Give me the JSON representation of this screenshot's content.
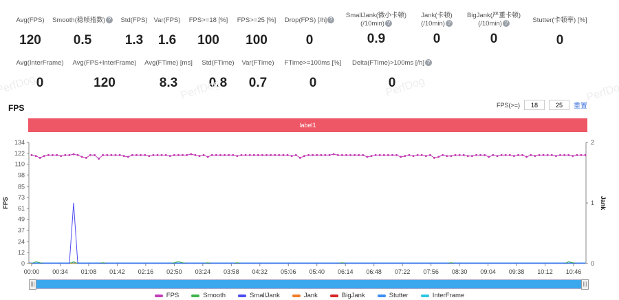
{
  "stats_row1": [
    {
      "label": "Avg(FPS)",
      "value": "120",
      "help": false
    },
    {
      "label": "Smooth(稳帧指数)",
      "value": "0.5",
      "help": true
    },
    {
      "label": "Std(FPS)",
      "value": "1.3",
      "help": false
    },
    {
      "label": "Var(FPS)",
      "value": "1.6",
      "help": false
    },
    {
      "label": "FPS>=18 [%]",
      "value": "100",
      "help": false
    },
    {
      "label": "FPS>=25 [%]",
      "value": "100",
      "help": false
    },
    {
      "label": "Drop(FPS) [/h]",
      "value": "0",
      "help": true
    },
    {
      "label": "SmallJank(微小卡顿)",
      "label2": "(/10min)",
      "value": "0.9",
      "help": true
    },
    {
      "label": "Jank(卡顿)",
      "label2": "(/10min)",
      "value": "0",
      "help": true
    },
    {
      "label": "BigJank(严重卡顿)",
      "label2": "(/10min)",
      "value": "0",
      "help": true
    },
    {
      "label": "Stutter(卡顿率) [%]",
      "value": "0",
      "help": false
    }
  ],
  "stats_row2": [
    {
      "label": "Avg(InterFrame)",
      "value": "0",
      "help": false
    },
    {
      "label": "Avg(FPS+InterFrame)",
      "value": "120",
      "help": false
    },
    {
      "label": "Avg(FTime) [ms]",
      "value": "8.3",
      "help": false
    },
    {
      "label": "Std(FTime)",
      "value": "0.8",
      "help": false
    },
    {
      "label": "Var(FTime)",
      "value": "0.7",
      "help": false
    },
    {
      "label": "FTime>=100ms [%]",
      "value": "0",
      "help": false
    },
    {
      "label": "Delta(FTime)>100ms [/h]",
      "value": "0",
      "help": true
    }
  ],
  "watermark": "PerfDog",
  "fps_section": {
    "title": "FPS",
    "threshold_label": "FPS(>=)",
    "threshold1": "18",
    "threshold2": "25",
    "reset_label": "重置",
    "label_bar": "label1"
  },
  "slider": {
    "start": 0,
    "end": 1,
    "handle_glyph": "|||"
  },
  "chart_data": {
    "type": "line",
    "ylabel": "FPS",
    "ylabel_right": "Jank",
    "ylim": [
      0,
      134
    ],
    "ylim_right": [
      0,
      2
    ],
    "yticks": [
      0,
      12,
      24,
      37,
      49,
      61,
      73,
      85,
      98,
      110,
      122,
      134
    ],
    "yticks_right": [
      0,
      1,
      2
    ],
    "xticks": [
      "00:00",
      "00:34",
      "01:08",
      "01:42",
      "02:16",
      "02:50",
      "03:24",
      "03:58",
      "04:32",
      "05:06",
      "05:40",
      "06:14",
      "06:48",
      "07:22",
      "07:56",
      "08:30",
      "09:04",
      "09:38",
      "10:12",
      "10:46"
    ],
    "x_interval_s": 5,
    "series": [
      {
        "name": "FPS",
        "color": "#c23fb5",
        "axis": "left",
        "values": [
          120,
          119,
          117,
          119,
          120,
          120,
          120,
          119,
          120,
          120,
          121,
          120,
          118,
          117,
          120,
          120,
          116,
          120,
          120,
          120,
          120,
          120,
          119,
          118,
          120,
          120,
          120,
          120,
          119,
          120,
          120,
          120,
          120,
          119,
          120,
          120,
          120,
          120,
          121,
          120,
          119,
          120,
          118,
          120,
          120,
          120,
          120,
          120,
          120,
          119,
          120,
          120,
          120,
          120,
          120,
          120,
          120,
          120,
          120,
          120,
          120,
          120,
          119,
          120,
          117,
          119,
          120,
          120,
          120,
          120,
          120,
          120,
          121,
          120,
          120,
          120,
          120,
          120,
          120,
          120,
          118,
          119,
          120,
          120,
          120,
          120,
          120,
          120,
          118,
          119,
          120,
          119,
          120,
          120,
          119,
          120,
          117,
          118,
          120,
          119,
          119,
          120,
          120,
          120,
          119,
          119,
          120,
          120,
          120,
          118,
          120,
          119,
          120,
          120,
          120,
          119,
          120,
          120,
          118,
          120,
          119,
          120,
          120,
          120,
          120,
          119,
          120,
          120,
          120,
          119,
          120,
          120,
          120
        ]
      },
      {
        "name": "Smooth",
        "color": "#3cb44b",
        "axis": "left",
        "values": [
          0,
          2,
          1,
          0,
          0,
          0,
          0,
          0,
          0,
          0,
          2,
          0,
          0,
          0,
          0,
          0,
          0,
          1,
          0,
          0,
          0,
          0,
          0,
          0,
          0,
          0,
          0,
          0,
          0,
          0,
          0,
          0,
          0,
          0,
          1,
          2,
          1,
          0,
          0,
          0,
          0,
          0,
          1,
          0,
          0,
          0,
          0,
          0,
          0,
          1,
          0,
          0,
          0,
          0,
          0,
          0,
          0,
          0,
          0,
          0,
          0,
          0,
          0,
          0,
          0,
          0,
          0,
          0,
          0,
          0,
          0,
          0,
          0,
          0,
          1,
          0,
          0,
          0,
          0,
          0,
          0,
          0,
          0,
          0,
          0,
          0,
          0,
          0,
          0,
          0,
          0,
          0,
          0,
          0,
          0,
          0,
          0,
          0,
          0,
          0,
          1,
          0,
          0,
          0,
          0,
          0,
          0,
          0,
          0,
          0,
          0,
          0,
          0,
          0,
          0,
          0,
          0,
          0,
          0,
          0,
          0,
          0,
          0,
          0,
          0,
          0,
          0,
          0,
          2,
          1,
          0,
          0,
          0
        ]
      },
      {
        "name": "SmallJank",
        "color": "#4b4bf0",
        "axis": "right",
        "values": [
          0,
          0,
          0,
          0,
          0,
          0,
          0,
          0,
          0,
          0,
          1,
          0,
          0,
          0,
          0,
          0,
          0,
          0,
          0,
          0,
          0,
          0,
          0,
          0,
          0,
          0,
          0,
          0,
          0,
          0,
          0,
          0,
          0,
          0,
          0,
          0,
          0,
          0,
          0,
          0,
          0,
          0,
          0,
          0,
          0,
          0,
          0,
          0,
          0,
          0,
          0,
          0,
          0,
          0,
          0,
          0,
          0,
          0,
          0,
          0,
          0,
          0,
          0,
          0,
          0,
          0,
          0,
          0,
          0,
          0,
          0,
          0,
          0,
          0,
          0,
          0,
          0,
          0,
          0,
          0,
          0,
          0,
          0,
          0,
          0,
          0,
          0,
          0,
          0,
          0,
          0,
          0,
          0,
          0,
          0,
          0,
          0,
          0,
          0,
          0,
          0,
          0,
          0,
          0,
          0,
          0,
          0,
          0,
          0,
          0,
          0,
          0,
          0,
          0,
          0,
          0,
          0,
          0,
          0,
          0,
          0,
          0,
          0,
          0,
          0,
          0,
          0,
          0,
          0,
          0,
          0,
          0,
          0
        ]
      },
      {
        "name": "Jank",
        "color": "#f07d2a",
        "axis": "right",
        "values": []
      },
      {
        "name": "BigJank",
        "color": "#d62728",
        "axis": "right",
        "values": []
      },
      {
        "name": "Stutter",
        "color": "#3d8ef0",
        "axis": "left",
        "values": []
      },
      {
        "name": "InterFrame",
        "color": "#2ec7e0",
        "axis": "left",
        "values": []
      }
    ],
    "grid": false,
    "legend": "bottom"
  }
}
